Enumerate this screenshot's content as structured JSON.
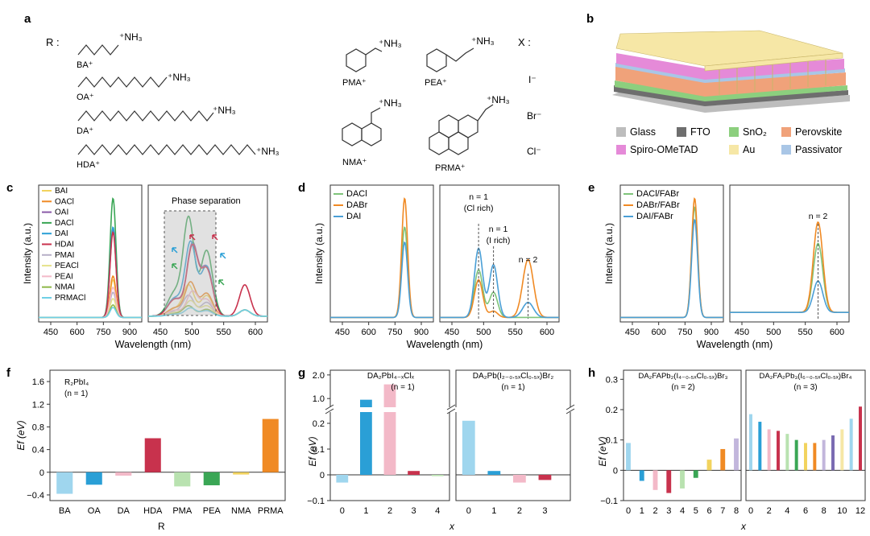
{
  "panels": {
    "a": {
      "letter": "a",
      "r_label": "R :",
      "x_label": "X :",
      "cations": [
        {
          "name": "BA⁺",
          "group": "⁺NH₃"
        },
        {
          "name": "OA⁺",
          "group": "⁺NH₃"
        },
        {
          "name": "DA⁺",
          "group": "⁺NH₃"
        },
        {
          "name": "HDA⁺",
          "group": "⁺NH₃"
        },
        {
          "name": "PMA⁺",
          "group": "⁺NH₃"
        },
        {
          "name": "PEA⁺",
          "group": "⁺NH₃"
        },
        {
          "name": "NMA⁺",
          "group": "⁺NH₃"
        },
        {
          "name": "PRMA⁺",
          "group": "⁺NH₃"
        }
      ],
      "anions": [
        "I⁻",
        "Br⁻",
        "Cl⁻"
      ]
    },
    "b": {
      "letter": "b",
      "legend": [
        {
          "label": "Glass",
          "color": "#bdbdbd"
        },
        {
          "label": "FTO",
          "color": "#6e6e6e"
        },
        {
          "label": "SnO₂",
          "color": "#8ccf7e"
        },
        {
          "label": "Perovskite",
          "color": "#f0a27a"
        },
        {
          "label": "Spiro-OMeTAD",
          "color": "#e58ad8"
        },
        {
          "label": "Au",
          "color": "#f6e7a6"
        },
        {
          "label": "Passivator",
          "color": "#a9c6e6"
        }
      ]
    },
    "c": {
      "letter": "c",
      "annotation": "Phase separation",
      "ylabel": "Intensity (a.u.)",
      "xlabel": "Wavelength (nm)",
      "xticks_left": [
        "450",
        "600",
        "750",
        "900"
      ],
      "xticks_right": [
        "450",
        "500",
        "550",
        "600"
      ]
    },
    "d": {
      "letter": "d",
      "ylabel": "Intensity (a.u.)",
      "xlabel": "Wavelength (nm)",
      "annot": [
        "n = 1",
        "(Cl rich)",
        "n = 1",
        "(I rich)",
        "n = 2"
      ],
      "xticks_left": [
        "450",
        "600",
        "750",
        "900"
      ],
      "xticks_right": [
        "450",
        "500",
        "550",
        "600"
      ]
    },
    "e": {
      "letter": "e",
      "ylabel": "Intensity (a.u.)",
      "xlabel": "Wavelength (nm)",
      "annot": [
        "n = 2"
      ],
      "xticks_left": [
        "450",
        "600",
        "750",
        "900"
      ],
      "xticks_right": [
        "450",
        "500",
        "550",
        "600"
      ]
    },
    "f": {
      "letter": "f",
      "subtitle1": "R₂PbI₄",
      "subtitle2": "(n = 1)",
      "ylabel": "Ef (eV)",
      "xlabel": "R",
      "yticks": [
        "1.6",
        "1.2",
        "0.8",
        "0.4",
        "0",
        "−0.4"
      ]
    },
    "g": {
      "letter": "g",
      "title_left": "DA₂PbI₄₋ₓClₓ",
      "title_left_n": "(n = 1)",
      "title_right": "DA₂Pb(I₂₋₀.₅ₓCl₀.₅ₓ)Br₂",
      "title_right_n": "(n = 1)",
      "ylabel": "Ef (eV)",
      "xlabel": "x",
      "yticks_top": [
        "2.0",
        "1.0"
      ],
      "yticks": [
        "0.2",
        "0.1",
        "0",
        "−0.1"
      ]
    },
    "h": {
      "letter": "h",
      "title_left": "DA₂FAPb₂(I₄₋₀.₅ₓCl₀.₅ₓ)Br₃",
      "title_left_n": "(n = 2)",
      "title_right": "DA₂FA₂Pb₃(I₆₋₀.₅ₓCl₀.₅ₓ)Br₄",
      "title_right_n": "(n = 3)",
      "ylabel": "Ef (eV)",
      "xlabel": "x",
      "yticks": [
        "0.3",
        "0.2",
        "0.1",
        "0",
        "−0.1"
      ]
    }
  },
  "chart_data": [
    {
      "type": "line",
      "panel": "c",
      "title": "",
      "xlabel": "Wavelength (nm)",
      "ylabel": "Intensity (a.u.)",
      "xlim_left": [
        430,
        950
      ],
      "xlim_right": [
        430,
        630
      ],
      "series": [
        {
          "name": "BAI",
          "color": "#f2d35e",
          "peak_nm": 805,
          "height": 0.3
        },
        {
          "name": "OACl",
          "color": "#f08a24",
          "peak_nm": 805,
          "height": 0.33
        },
        {
          "name": "OAI",
          "color": "#8a5aa8",
          "peak_nm": 805,
          "height": 0.7
        },
        {
          "name": "DACl",
          "color": "#3aa655",
          "peak_nm": 805,
          "height": 0.95
        },
        {
          "name": "DAI",
          "color": "#2a9fd6",
          "peak_nm": 805,
          "height": 0.72
        },
        {
          "name": "HDAI",
          "color": "#c8324d",
          "peak_nm": 805,
          "height": 0.68
        },
        {
          "name": "PMAI",
          "color": "#b8b0c8",
          "peak_nm": 805,
          "height": 0.2
        },
        {
          "name": "PEACl",
          "color": "#e6e28a",
          "peak_nm": 805,
          "height": 0.15
        },
        {
          "name": "PEAI",
          "color": "#f3b9c8",
          "peak_nm": 805,
          "height": 0.24
        },
        {
          "name": "NMAI",
          "color": "#8fb84a",
          "peak_nm": 805,
          "height": 0.1
        },
        {
          "name": "PRMACl",
          "color": "#6fd0e6",
          "peak_nm": 805,
          "height": 0.08
        }
      ]
    },
    {
      "type": "line",
      "panel": "d",
      "title": "",
      "xlabel": "Wavelength (nm)",
      "ylabel": "Intensity (a.u.)",
      "series": [
        {
          "name": "DACl",
          "color": "#7fc47a",
          "peak_nm": 805,
          "height": 0.72
        },
        {
          "name": "DABr",
          "color": "#f08a24",
          "peak_nm": 805,
          "height": 0.95
        },
        {
          "name": "DAI",
          "color": "#4a9fd6",
          "peak_nm": 805,
          "height": 0.6
        }
      ],
      "zoom_peaks_nm": {
        "n1_Cl_rich": 495,
        "n1_I_rich": 520,
        "n2": 578
      }
    },
    {
      "type": "line",
      "panel": "e",
      "title": "",
      "xlabel": "Wavelength (nm)",
      "ylabel": "Intensity (a.u.)",
      "series": [
        {
          "name": "DACl/FABr",
          "color": "#7fc47a",
          "peak_nm": 805,
          "height": 0.88
        },
        {
          "name": "DABr/FABr",
          "color": "#f08a24",
          "peak_nm": 805,
          "height": 0.95
        },
        {
          "name": "DAI/FABr",
          "color": "#4a9fd6",
          "peak_nm": 805,
          "height": 0.78
        }
      ],
      "zoom_peaks_nm": {
        "n2": 578
      }
    },
    {
      "type": "bar",
      "panel": "f",
      "title": "",
      "categories": [
        "BA",
        "OA",
        "DA",
        "HDA",
        "PMA",
        "PEA",
        "NMA",
        "PRMA"
      ],
      "values": [
        -0.38,
        -0.22,
        -0.06,
        0.6,
        -0.25,
        -0.23,
        -0.04,
        0.94
      ],
      "colors": [
        "#9fd6ee",
        "#2a9fd6",
        "#f3b9c8",
        "#c8324d",
        "#b9e2b0",
        "#3aa655",
        "#f2d35e",
        "#f08a24"
      ],
      "ylim": [
        -0.5,
        1.8
      ],
      "xlabel": "R",
      "ylabel": "Ef (eV)"
    },
    {
      "type": "bar",
      "panel": "g",
      "subplots": [
        {
          "categories": [
            "0",
            "1",
            "2",
            "3",
            "4"
          ],
          "values": [
            -0.03,
            0.95,
            1.6,
            0.015,
            -0.005
          ],
          "colors": [
            "#9fd6ee",
            "#2a9fd6",
            "#f3b9c8",
            "#c8324d",
            "#b9e2b0"
          ]
        },
        {
          "categories": [
            "0",
            "1",
            "2",
            "3"
          ],
          "values": [
            0.21,
            0.015,
            -0.03,
            -0.02
          ],
          "colors": [
            "#9fd6ee",
            "#2a9fd6",
            "#f3b9c8",
            "#c8324d"
          ]
        }
      ],
      "xlabel": "x",
      "ylabel": "Ef (eV)"
    },
    {
      "type": "bar",
      "panel": "h",
      "subplots": [
        {
          "categories": [
            "0",
            "1",
            "2",
            "3",
            "4",
            "5",
            "6",
            "7",
            "8"
          ],
          "values": [
            0.09,
            -0.035,
            -0.065,
            -0.075,
            -0.06,
            -0.025,
            0.035,
            0.07,
            0.105
          ]
        },
        {
          "categories": [
            "0",
            "1",
            "2",
            "3",
            "4",
            "5",
            "6",
            "7",
            "8",
            "9",
            "10",
            "11",
            "12"
          ],
          "values": [
            0.185,
            0.16,
            0.135,
            0.13,
            0.12,
            0.1,
            0.09,
            0.09,
            0.1,
            0.115,
            0.135,
            0.17,
            0.21
          ]
        }
      ],
      "xlabel": "x",
      "ylabel": "Ef (eV)",
      "ylim": [
        -0.1,
        0.3
      ]
    }
  ]
}
